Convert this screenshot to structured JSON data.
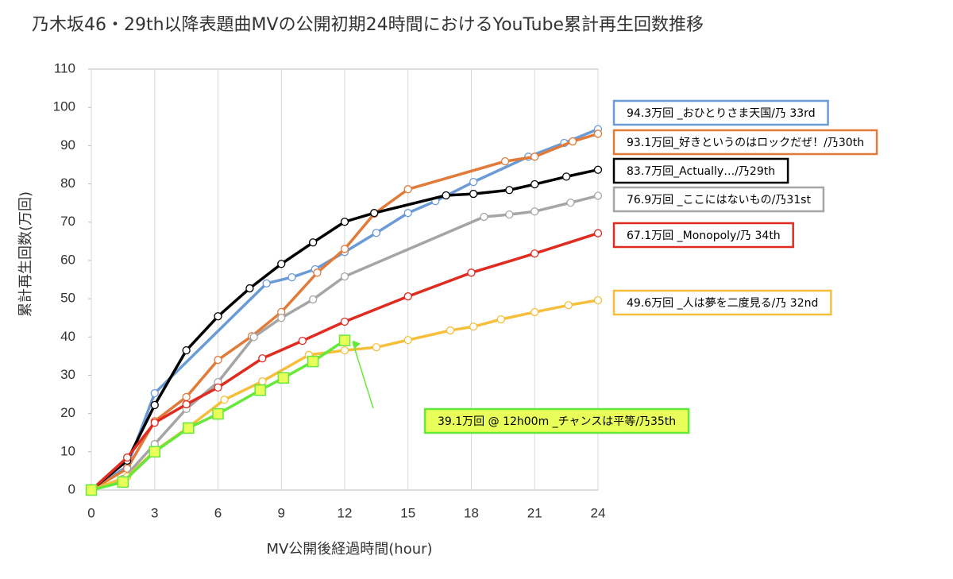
{
  "chart_data": {
    "type": "line",
    "title": "乃木坂46・29th以降表題曲MVの公開初期24時間におけるYouTube累計再生回数推移",
    "x_label": "MV公開後経過時間(hour)",
    "y_label": "累計再生回数(万回)",
    "xlim": [
      0,
      24
    ],
    "xticks": [
      0,
      3,
      6,
      9,
      12,
      15,
      18,
      21,
      24
    ],
    "ylim": [
      0,
      110
    ],
    "yticks": [
      0,
      10,
      20,
      30,
      40,
      50,
      60,
      70,
      80,
      90,
      100,
      110
    ],
    "grid": "x",
    "series": [
      {
        "name": "94.3万回 _おひとりさま天国/乃 33rd",
        "color": "#6b9bd6",
        "marker": "circle",
        "marker_fill": "#ffffff",
        "x": [
          0,
          1.7,
          3,
          8.3,
          9.5,
          10.6,
          12,
          13.5,
          15,
          16.3,
          18.1,
          20.7,
          22.4,
          24
        ],
        "values": [
          0,
          6.2,
          25.3,
          54,
          55.6,
          57.7,
          62.2,
          67.2,
          72.4,
          75.5,
          80.5,
          87.1,
          90.7,
          94.3
        ]
      },
      {
        "name": "93.1万回_好きというのはロックだぜ！/乃30th",
        "color": "#e07b39",
        "marker": "circle",
        "marker_fill": "#ffffff",
        "x": [
          0,
          1.7,
          3,
          4.5,
          6,
          7.6,
          9,
          10.7,
          12,
          13.4,
          15,
          19.6,
          21,
          22.8,
          24
        ],
        "values": [
          0,
          5.6,
          18,
          24.3,
          34,
          40.2,
          46.5,
          56.8,
          63,
          72.2,
          78.6,
          85.9,
          87.1,
          91.1,
          93.1
        ]
      },
      {
        "name": "83.7万回_Actually…/乃29th",
        "color": "#000000",
        "marker": "circle",
        "marker_fill": "#ffffff",
        "x": [
          0,
          1.7,
          3,
          4.5,
          6,
          7.5,
          9,
          10.5,
          12,
          13.4,
          16.8,
          18.1,
          19.8,
          21,
          22.5,
          24
        ],
        "values": [
          0,
          7.7,
          22.2,
          36.5,
          45.4,
          52.7,
          59.1,
          64.7,
          70.1,
          72.4,
          77,
          77.4,
          78.4,
          79.9,
          81.9,
          83.7
        ]
      },
      {
        "name": "76.9万回 _ここにはないもの/乃31st",
        "color": "#a5a5a5",
        "marker": "circle",
        "marker_fill": "#ffffff",
        "x": [
          0,
          1.5,
          3,
          4.5,
          6,
          7.7,
          9,
          10.5,
          12,
          18.6,
          19.8,
          21,
          22.7,
          24
        ],
        "values": [
          0,
          2.9,
          12,
          21.2,
          28.2,
          40,
          45,
          49.8,
          55.8,
          71.4,
          72,
          72.8,
          75.1,
          76.9
        ]
      },
      {
        "name": "67.1万回 _Monopoly/乃 34th",
        "color": "#e02b20",
        "marker": "circle",
        "marker_fill": "#ffffff",
        "x": [
          0,
          1.7,
          3,
          4.5,
          6,
          8.1,
          10,
          12,
          15,
          18,
          21,
          24
        ],
        "values": [
          0,
          8.5,
          17.6,
          22.4,
          26.8,
          34.4,
          39,
          44,
          50.6,
          56.8,
          61.8,
          67.1
        ]
      },
      {
        "name": "49.6万回 _人は夢を二度見る/乃 32nd",
        "color": "#f5bf3c",
        "marker": "circle",
        "marker_fill": "#ffffff",
        "x": [
          0,
          1.7,
          3,
          4.5,
          6.3,
          8.1,
          10.3,
          12,
          13.5,
          15,
          17,
          18.1,
          19.4,
          21,
          22.6,
          24
        ],
        "values": [
          0,
          3.5,
          10.2,
          16,
          23.6,
          28.4,
          35.3,
          36.5,
          37.3,
          39.2,
          41.7,
          42.7,
          44.6,
          46.5,
          48.3,
          49.6
        ]
      },
      {
        "name": "39.1万回 @ 12h00m _チャンスは平等/乃35th",
        "color": "#66e83a",
        "marker": "square",
        "marker_fill": "#e8ff5a",
        "x": [
          0,
          1.5,
          3,
          4.6,
          6,
          8,
          9.1,
          10.5,
          12
        ],
        "values": [
          0,
          2.1,
          10,
          16.2,
          19.9,
          26.1,
          29.3,
          33.6,
          39.1
        ]
      }
    ]
  }
}
